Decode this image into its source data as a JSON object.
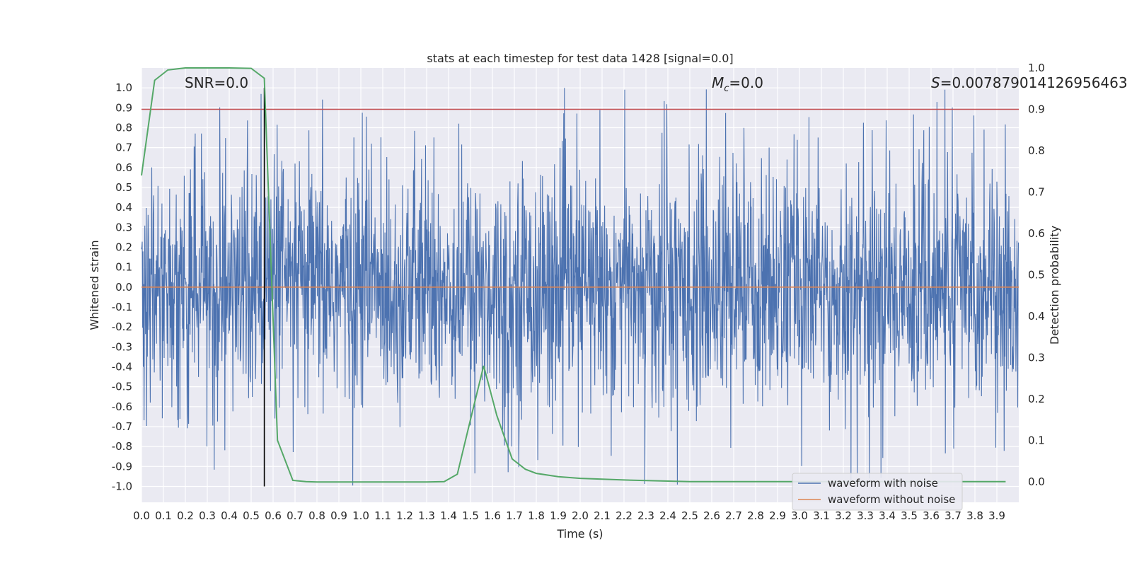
{
  "chart_data": {
    "type": "line",
    "title": "stats at each timestep for test data 1428 [signal=0.0]",
    "xlabel": "Time (s)",
    "ylabel": "Whitened strain",
    "y2label": "Detection probability",
    "xlim": [
      0.0,
      4.0
    ],
    "ylim": [
      -1.08,
      1.1
    ],
    "y2lim": [
      -0.05,
      1.0
    ],
    "xticks": [
      "0.0",
      "0.1",
      "0.2",
      "0.3",
      "0.4",
      "0.5",
      "0.6",
      "0.7",
      "0.8",
      "0.9",
      "1.0",
      "1.1",
      "1.2",
      "1.3",
      "1.4",
      "1.5",
      "1.6",
      "1.7",
      "1.8",
      "1.9",
      "2.0",
      "2.1",
      "2.2",
      "2.3",
      "2.4",
      "2.5",
      "2.6",
      "2.7",
      "2.8",
      "2.9",
      "3.0",
      "3.1",
      "3.2",
      "3.3",
      "3.4",
      "3.5",
      "3.6",
      "3.7",
      "3.8",
      "3.9"
    ],
    "yticks": [
      "1.0",
      "0.9",
      "0.8",
      "0.7",
      "0.6",
      "0.5",
      "0.4",
      "0.3",
      "0.2",
      "0.1",
      "0.0",
      "-0.1",
      "-0.2",
      "-0.3",
      "-0.4",
      "-0.5",
      "-0.6",
      "-0.7",
      "-0.8",
      "-0.9",
      "-1.0"
    ],
    "y2ticks": [
      "1.0",
      "0.9",
      "0.8",
      "0.7",
      "0.6",
      "0.5",
      "0.4",
      "0.3",
      "0.2",
      "0.1",
      "0.0"
    ],
    "annotations": {
      "snr": "SNR=0.0",
      "mc_symbol": "M",
      "mc_sub": "c",
      "mc_value": "=0.0",
      "s_symbol": "S",
      "s_value": "=0.007879014126956463"
    },
    "series": [
      {
        "name": "waveform with noise",
        "color": "#4c72b0",
        "style": "dense noise, amplitude ~0.4 typical with peaks to ~±1.0"
      },
      {
        "name": "waveform without noise",
        "color": "#dd8452",
        "values": "constant 0.0"
      },
      {
        "name": "detection probability",
        "color": "#55a868",
        "axis": "right",
        "x": [
          0.0,
          0.06,
          0.12,
          0.2,
          0.3,
          0.4,
          0.5,
          0.56,
          0.62,
          0.69,
          0.75,
          0.8,
          1.0,
          1.2,
          1.3,
          1.38,
          1.44,
          1.5,
          1.56,
          1.62,
          1.69,
          1.75,
          1.8,
          1.9,
          2.0,
          2.2,
          2.5,
          3.0,
          3.5,
          3.94
        ],
        "values": [
          0.74,
          0.97,
          0.995,
          1.0,
          1.0,
          1.0,
          0.999,
          0.975,
          0.1,
          0.003,
          0.0,
          -0.001,
          -0.001,
          -0.001,
          -0.001,
          0.0,
          0.018,
          0.15,
          0.28,
          0.16,
          0.055,
          0.03,
          0.02,
          0.012,
          0.008,
          0.004,
          0.0,
          0.0,
          0.0,
          0.0
        ]
      }
    ],
    "threshold_line": {
      "y2": 0.9,
      "color": "#c44e52"
    },
    "vertical_marker": {
      "x": 0.56,
      "color": "#000000"
    },
    "legend": {
      "position": "bottom-right",
      "entries": [
        "waveform with noise",
        "waveform without noise"
      ]
    }
  }
}
